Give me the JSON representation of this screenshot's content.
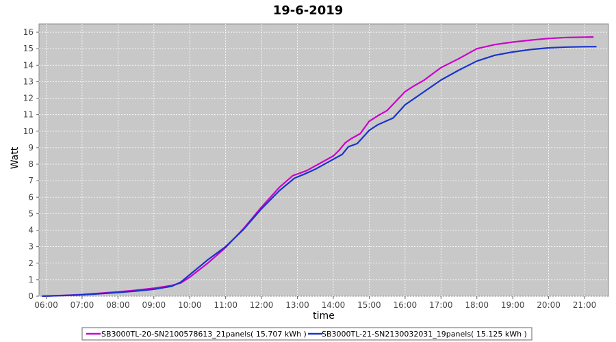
{
  "chart_data": {
    "type": "line",
    "title": "19-6-2019",
    "xlabel": "time",
    "ylabel": "Watt",
    "ylim": [
      0,
      16.5
    ],
    "yticks": [
      "0",
      "1",
      "2",
      "3",
      "4",
      "5",
      "6",
      "7",
      "8",
      "9",
      "10",
      "11",
      "12",
      "13",
      "14",
      "15",
      "16"
    ],
    "xticks": [
      "06:00",
      "07:00",
      "08:00",
      "09:00",
      "10:00",
      "11:00",
      "12:00",
      "13:00",
      "14:00",
      "15:00",
      "16:00",
      "17:00",
      "18:00",
      "19:00",
      "20:00",
      "21:00"
    ],
    "grid": true,
    "background": "#c8c8c8",
    "legend_position": "bottom",
    "series": [
      {
        "name": "SB3000TL-20-SN2100578613_21panels( 15.707 kWh )",
        "color": "#cc00cc",
        "points": [
          [
            "05:53",
            0
          ],
          [
            "06:30",
            0.05
          ],
          [
            "07:00",
            0.1
          ],
          [
            "07:30",
            0.18
          ],
          [
            "08:00",
            0.26
          ],
          [
            "08:30",
            0.36
          ],
          [
            "09:00",
            0.48
          ],
          [
            "09:30",
            0.65
          ],
          [
            "09:45",
            0.8
          ],
          [
            "10:00",
            1.15
          ],
          [
            "10:30",
            2.0
          ],
          [
            "11:00",
            2.95
          ],
          [
            "11:30",
            4.1
          ],
          [
            "12:00",
            5.4
          ],
          [
            "12:30",
            6.6
          ],
          [
            "12:52",
            7.3
          ],
          [
            "13:15",
            7.6
          ],
          [
            "13:30",
            7.9
          ],
          [
            "14:00",
            8.5
          ],
          [
            "14:10",
            8.85
          ],
          [
            "14:20",
            9.3
          ],
          [
            "14:30",
            9.55
          ],
          [
            "14:45",
            9.85
          ],
          [
            "15:00",
            10.6
          ],
          [
            "15:15",
            10.95
          ],
          [
            "15:30",
            11.25
          ],
          [
            "16:00",
            12.4
          ],
          [
            "16:15",
            12.75
          ],
          [
            "16:30",
            13.05
          ],
          [
            "17:00",
            13.85
          ],
          [
            "17:30",
            14.4
          ],
          [
            "18:00",
            15.0
          ],
          [
            "18:30",
            15.25
          ],
          [
            "19:00",
            15.4
          ],
          [
            "19:30",
            15.52
          ],
          [
            "20:00",
            15.62
          ],
          [
            "20:30",
            15.68
          ],
          [
            "21:00",
            15.7
          ],
          [
            "21:15",
            15.707
          ]
        ]
      },
      {
        "name": "SB3000TL-21-SN2130032031_19panels( 15.125 kWh )",
        "color": "#1a33cc",
        "points": [
          [
            "05:53",
            0
          ],
          [
            "06:30",
            0.04
          ],
          [
            "07:00",
            0.08
          ],
          [
            "07:30",
            0.15
          ],
          [
            "08:00",
            0.22
          ],
          [
            "08:30",
            0.31
          ],
          [
            "09:00",
            0.42
          ],
          [
            "09:30",
            0.6
          ],
          [
            "09:45",
            0.85
          ],
          [
            "10:00",
            1.3
          ],
          [
            "10:30",
            2.2
          ],
          [
            "11:00",
            3.0
          ],
          [
            "11:30",
            4.05
          ],
          [
            "12:00",
            5.3
          ],
          [
            "12:30",
            6.4
          ],
          [
            "12:55",
            7.15
          ],
          [
            "13:15",
            7.45
          ],
          [
            "13:30",
            7.7
          ],
          [
            "14:00",
            8.3
          ],
          [
            "14:15",
            8.6
          ],
          [
            "14:25",
            9.05
          ],
          [
            "14:40",
            9.25
          ],
          [
            "15:00",
            10.05
          ],
          [
            "15:15",
            10.4
          ],
          [
            "15:40",
            10.8
          ],
          [
            "16:00",
            11.6
          ],
          [
            "16:30",
            12.35
          ],
          [
            "17:00",
            13.1
          ],
          [
            "17:30",
            13.7
          ],
          [
            "18:00",
            14.25
          ],
          [
            "18:30",
            14.6
          ],
          [
            "19:00",
            14.8
          ],
          [
            "19:30",
            14.95
          ],
          [
            "20:00",
            15.05
          ],
          [
            "20:30",
            15.1
          ],
          [
            "21:00",
            15.12
          ],
          [
            "21:20",
            15.125
          ]
        ]
      }
    ]
  }
}
